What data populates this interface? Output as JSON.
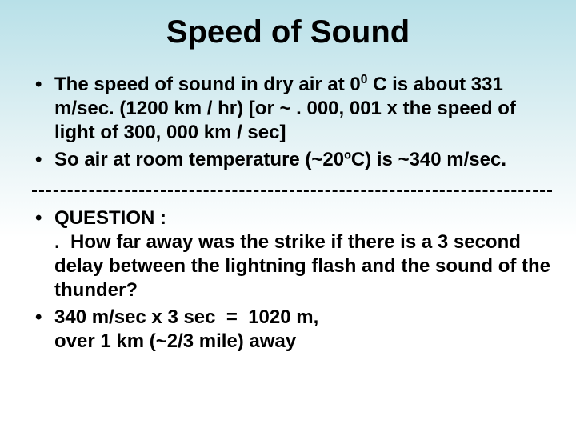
{
  "slide": {
    "title": "Speed of Sound",
    "title_fontsize": 40,
    "title_color": "#000000",
    "body_fontsize": 24,
    "body_color": "#000000",
    "background_gradient": {
      "top": "#b8e0e8",
      "mid": "#e8f4f6",
      "bottom": "#ffffff"
    },
    "divider_color": "#000000",
    "section1": {
      "bullets": [
        "The speed of sound in dry air at 0⁰ C is about 331 m/sec. (1200 km / hr) [or ~ . 000, 001 x the speed of light of 300, 000 km / sec]",
        "So air at room temperature (~20ºC) is ~340 m/sec."
      ]
    },
    "section2": {
      "bullets": [
        "QUESTION :\n.  How far away was the strike if there is a 3 second delay between the lightning flash and the sound of the thunder?",
        "340 m/sec x 3 sec  =  1020 m,\nover 1 km (~2/3 mile) away"
      ]
    }
  }
}
